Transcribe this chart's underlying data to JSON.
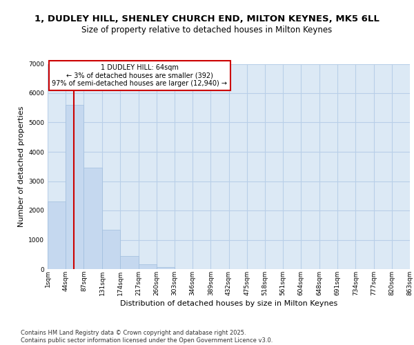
{
  "title": "1, DUDLEY HILL, SHENLEY CHURCH END, MILTON KEYNES, MK5 6LL",
  "subtitle": "Size of property relative to detached houses in Milton Keynes",
  "xlabel": "Distribution of detached houses by size in Milton Keynes",
  "ylabel": "Number of detached properties",
  "bar_color": "#c5d8ef",
  "bar_edge_color": "#a0bedd",
  "grid_color": "#b8cfe8",
  "background_color": "#dce9f5",
  "property_line_color": "#cc0000",
  "property_size": 64,
  "annotation_text": "1 DUDLEY HILL: 64sqm\n← 3% of detached houses are smaller (392)\n97% of semi-detached houses are larger (12,940) →",
  "bins": [
    1,
    44,
    87,
    131,
    174,
    217,
    260,
    303,
    346,
    389,
    432,
    475,
    518,
    561,
    604,
    648,
    691,
    734,
    777,
    820,
    863
  ],
  "bin_labels": [
    "1sqm",
    "44sqm",
    "87sqm",
    "131sqm",
    "174sqm",
    "217sqm",
    "260sqm",
    "303sqm",
    "346sqm",
    "389sqm",
    "432sqm",
    "475sqm",
    "518sqm",
    "561sqm",
    "604sqm",
    "648sqm",
    "691sqm",
    "734sqm",
    "777sqm",
    "820sqm",
    "863sqm"
  ],
  "counts": [
    2300,
    5600,
    3450,
    1350,
    450,
    175,
    80,
    0,
    0,
    0,
    0,
    0,
    0,
    0,
    0,
    0,
    0,
    0,
    0,
    0
  ],
  "ylim": [
    0,
    7000
  ],
  "yticks": [
    0,
    1000,
    2000,
    3000,
    4000,
    5000,
    6000,
    7000
  ],
  "footer_text": "Contains HM Land Registry data © Crown copyright and database right 2025.\nContains public sector information licensed under the Open Government Licence v3.0.",
  "title_fontsize": 9.5,
  "subtitle_fontsize": 8.5,
  "axis_label_fontsize": 8,
  "tick_fontsize": 6.5,
  "footer_fontsize": 6,
  "annotation_fontsize": 7
}
